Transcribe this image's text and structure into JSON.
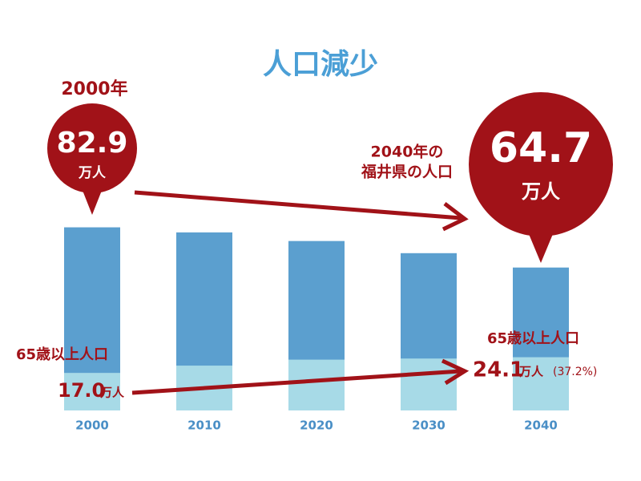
{
  "chart_data": {
    "type": "bar",
    "title": "人口減少",
    "categories": [
      "2000",
      "2010",
      "2020",
      "2030",
      "2040"
    ],
    "series": [
      {
        "color": "#5b9fcf",
        "values": [
          82.9,
          80.6,
          76.7,
          71.2,
          64.7
        ]
      },
      {
        "color": "#a7dae7",
        "values": [
          17.0,
          20.3,
          23.0,
          23.5,
          24.1
        ],
        "value_labels": [
          "17.0",
          null,
          null,
          null,
          "24.1"
        ]
      }
    ],
    "ylim": [
      0,
      90
    ],
    "annotations": {
      "start_year": "2000年",
      "unit": "万人",
      "end_caption_1": "2040年の",
      "end_caption_2": "福井県の人口",
      "elderly_caption": "65歳以上人口",
      "elderly_share": "(37.2%)"
    }
  }
}
